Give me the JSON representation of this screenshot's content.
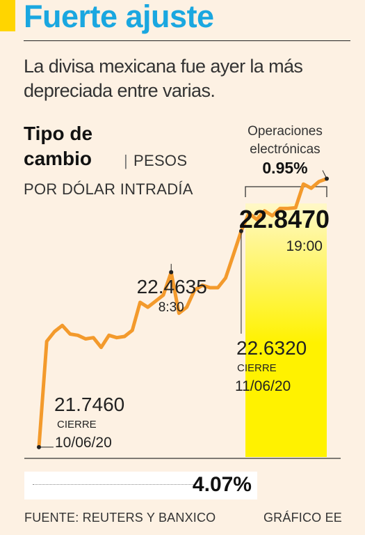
{
  "title": "Fuerte ajuste",
  "subtitle": "La divisa mexicana fue ayer la más depreciada entre varias.",
  "chart_header": {
    "title_line1": "Tipo de",
    "title_line2": "cambio",
    "separator": "|",
    "unit_line1": "PESOS",
    "unit_line2": "POR DÓLAR INTRADÍA"
  },
  "electronic_ops": {
    "label_line1": "Operaciones",
    "label_line2": "electrónicas",
    "pct": "0.95%"
  },
  "summary": {
    "change_pct": "4.07%"
  },
  "footer": {
    "source": "FUENTE: REUTERS Y BANXICO",
    "credit": "GRÁFICO EE"
  },
  "colors": {
    "title": "#1aa7e0",
    "accent_bar": "#ffd500",
    "line": "#f39a2c",
    "highlight_top": "#fff8c8",
    "highlight_bottom": "#fff200",
    "background": "#fdf1e3"
  },
  "chart_data": {
    "type": "line",
    "title": "",
    "ylabel": "",
    "ylim": [
      21.7,
      22.9
    ],
    "grid": false,
    "series": [
      {
        "name": "",
        "values": [
          21.746,
          22.18,
          22.22,
          22.245,
          22.21,
          22.205,
          22.19,
          22.195,
          22.155,
          22.205,
          22.195,
          22.2,
          22.225,
          22.34,
          22.32,
          22.345,
          22.37,
          22.4635,
          22.295,
          22.32,
          22.39,
          22.41,
          22.4,
          22.4,
          22.44,
          22.535,
          22.632,
          22.705,
          22.68,
          22.715,
          22.695,
          22.725,
          22.725,
          22.728,
          22.825,
          22.808,
          22.835,
          22.847
        ]
      }
    ],
    "annotations": [
      {
        "value": "21.7460",
        "note_line1": "CIERRE",
        "note_line2": "10/06/20"
      },
      {
        "value": "22.4635",
        "note_line1": "8:30"
      },
      {
        "value": "22.6320",
        "note_line1": "CIERRE",
        "note_line2": "11/06/20"
      },
      {
        "value": "22.8470",
        "note_line1": "19:00"
      }
    ]
  }
}
